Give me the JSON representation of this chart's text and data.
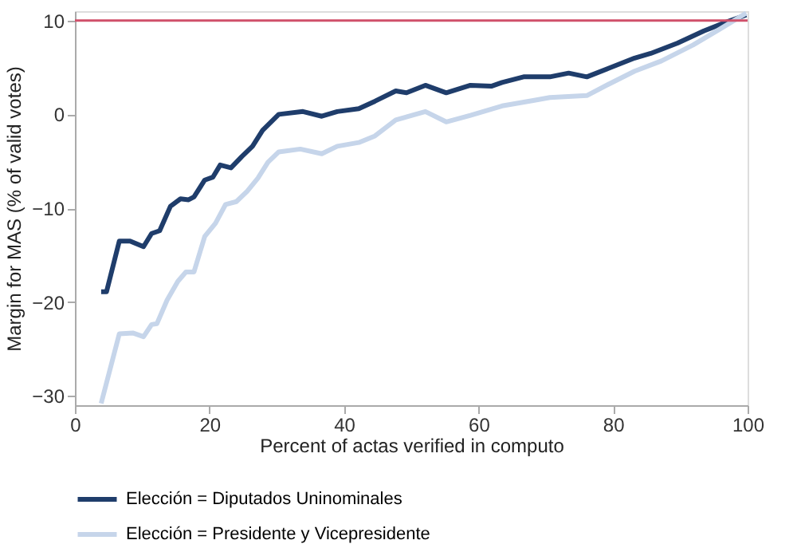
{
  "chart_data": {
    "type": "line",
    "xlabel": "Percent of actas verified in computo",
    "ylabel": "Margin for MAS (% of valid votes)",
    "xlim": [
      0,
      100
    ],
    "xticks": [
      0,
      20,
      40,
      60,
      80,
      100
    ],
    "ylim": [
      -31,
      11
    ],
    "yticks": [
      -30,
      -20,
      -10,
      0,
      10
    ],
    "grid": false,
    "legend": "bottom",
    "line_style": "solid",
    "marker": "none",
    "ref_lines": [
      {
        "axis": "y",
        "value": 10,
        "color": "#d0506a"
      }
    ],
    "series": [
      {
        "name": "Elección = Diputados Uninominales",
        "color": "#1f3d6b",
        "x": [
          3.9,
          4.7,
          6.6,
          8.2,
          10.2,
          11.4,
          12.6,
          14.2,
          15.7,
          16.9,
          17.7,
          19.3,
          20.5,
          21.6,
          23.2,
          24.8,
          26.4,
          27.9,
          30.3,
          33.9,
          36.7,
          39.0,
          42.2,
          44.6,
          47.7,
          49.3,
          52.1,
          55.2,
          58.8,
          61.9,
          63.5,
          66.7,
          70.6,
          73.4,
          76.1,
          79.3,
          83.2,
          85.6,
          89.6,
          93.5,
          96.7,
          99.8
        ],
        "values": [
          -18.9,
          -18.9,
          -13.5,
          -13.5,
          -14.1,
          -12.7,
          -12.4,
          -9.8,
          -9.0,
          -9.1,
          -8.8,
          -7.0,
          -6.7,
          -5.4,
          -5.7,
          -4.5,
          -3.4,
          -1.7,
          0.0,
          0.3,
          -0.2,
          0.3,
          0.6,
          1.4,
          2.5,
          2.3,
          3.1,
          2.3,
          3.1,
          3.0,
          3.4,
          4.0,
          4.0,
          4.4,
          4.0,
          4.9,
          6.0,
          6.5,
          7.6,
          8.9,
          9.8,
          10.6
        ]
      },
      {
        "name": "Elección = Presidente y Vicepresidente",
        "color": "#c6d5ea",
        "x": [
          3.9,
          6.6,
          8.6,
          10.2,
          11.4,
          12.2,
          13.7,
          15.3,
          16.5,
          17.7,
          19.3,
          20.9,
          22.4,
          24.0,
          25.6,
          27.2,
          28.7,
          30.3,
          33.5,
          36.7,
          39.0,
          42.2,
          44.6,
          47.7,
          52.1,
          55.2,
          58.8,
          63.5,
          68.3,
          70.6,
          76.1,
          79.3,
          83.2,
          87.2,
          91.9,
          95.9,
          99.8
        ],
        "values": [
          -30.8,
          -23.4,
          -23.3,
          -23.7,
          -22.4,
          -22.3,
          -19.8,
          -17.8,
          -16.8,
          -16.8,
          -13.0,
          -11.6,
          -9.6,
          -9.3,
          -8.2,
          -6.8,
          -5.1,
          -4.0,
          -3.7,
          -4.2,
          -3.4,
          -3.0,
          -2.3,
          -0.6,
          0.3,
          -0.8,
          -0.1,
          0.9,
          1.5,
          1.8,
          2.0,
          3.2,
          4.6,
          5.7,
          7.4,
          9.1,
          10.8
        ]
      }
    ]
  }
}
